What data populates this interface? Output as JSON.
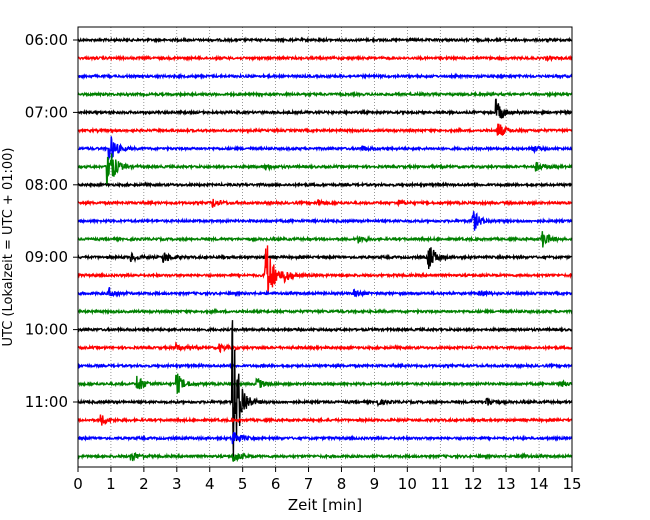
{
  "chart_data": {
    "type": "line",
    "title": "",
    "xlabel": "Zeit  [min]",
    "ylabel": "UTC (Lokalzeit = UTC + 01:00)",
    "xlim": [
      0,
      15
    ],
    "x_ticks": [
      "0",
      "1",
      "2",
      "3",
      "4",
      "5",
      "6",
      "7",
      "8",
      "9",
      "10",
      "11",
      "12",
      "13",
      "14",
      "15"
    ],
    "y_tick_labels": [
      "06:00",
      "07:00",
      "08:00",
      "09:00",
      "10:00",
      "11:00"
    ],
    "grid": "vertical dotted lines at each minute",
    "row_interval_minutes": 15,
    "trace_colors": [
      "#000000",
      "#ff0000",
      "#0000ff",
      "#008000"
    ],
    "traces": [
      {
        "start": "06:00",
        "events": []
      },
      {
        "start": "06:15",
        "events": [
          {
            "t": 14.2,
            "amp": 0.1
          }
        ]
      },
      {
        "start": "06:30",
        "events": []
      },
      {
        "start": "06:45",
        "events": []
      },
      {
        "start": "07:00",
        "events": [
          {
            "t": 12.7,
            "amp": 0.7
          }
        ]
      },
      {
        "start": "07:15",
        "events": [
          {
            "t": 12.75,
            "amp": 0.5
          }
        ]
      },
      {
        "start": "07:30",
        "events": [
          {
            "t": 0.95,
            "amp": 0.9
          },
          {
            "t": 8.6,
            "amp": 0.15
          },
          {
            "t": 13.8,
            "amp": 0.15
          }
        ]
      },
      {
        "start": "07:45",
        "events": [
          {
            "t": 0.9,
            "amp": 1.5
          },
          {
            "t": 5.7,
            "amp": 0.15
          },
          {
            "t": 13.9,
            "amp": 0.25
          }
        ]
      },
      {
        "start": "08:00",
        "events": []
      },
      {
        "start": "08:15",
        "events": [
          {
            "t": 4.1,
            "amp": 0.25
          },
          {
            "t": 7.3,
            "amp": 0.15
          },
          {
            "t": 9.7,
            "amp": 0.15
          }
        ]
      },
      {
        "start": "08:30",
        "events": [
          {
            "t": 12.0,
            "amp": 0.6
          }
        ]
      },
      {
        "start": "08:45",
        "events": [
          {
            "t": 8.5,
            "amp": 0.2
          },
          {
            "t": 14.1,
            "amp": 0.5
          }
        ]
      },
      {
        "start": "09:00",
        "events": [
          {
            "t": 1.6,
            "amp": 0.25
          },
          {
            "t": 2.6,
            "amp": 0.3
          },
          {
            "t": 10.65,
            "amp": 0.8
          }
        ]
      },
      {
        "start": "09:15",
        "events": [
          {
            "t": 5.7,
            "amp": 2.3
          },
          {
            "t": 6.3,
            "amp": 0.3
          }
        ]
      },
      {
        "start": "09:30",
        "events": [
          {
            "t": 0.95,
            "amp": 0.3
          },
          {
            "t": 8.4,
            "amp": 0.2
          },
          {
            "t": 12.2,
            "amp": 0.2
          }
        ]
      },
      {
        "start": "09:45",
        "events": []
      },
      {
        "start": "10:00",
        "events": []
      },
      {
        "start": "10:15",
        "events": [
          {
            "t": 3.0,
            "amp": 0.2
          },
          {
            "t": 4.3,
            "amp": 0.2
          }
        ]
      },
      {
        "start": "10:30",
        "events": []
      },
      {
        "start": "10:45",
        "events": [
          {
            "t": 1.8,
            "amp": 0.5
          },
          {
            "t": 3.0,
            "amp": 0.6
          },
          {
            "t": 5.4,
            "amp": 0.4
          },
          {
            "t": 14.6,
            "amp": 0.2
          }
        ]
      },
      {
        "start": "11:00",
        "events": [
          {
            "t": 4.7,
            "amp": 4.5
          },
          {
            "t": 9.1,
            "amp": 0.15
          },
          {
            "t": 12.4,
            "amp": 0.25
          }
        ]
      },
      {
        "start": "11:15",
        "events": [
          {
            "t": 0.7,
            "amp": 0.3
          }
        ]
      },
      {
        "start": "11:30",
        "events": [
          {
            "t": 4.7,
            "amp": 0.5
          }
        ]
      },
      {
        "start": "11:45",
        "events": [
          {
            "t": 1.6,
            "amp": 0.3
          },
          {
            "t": 4.7,
            "amp": 0.4
          },
          {
            "t": 13.4,
            "amp": 0.1
          }
        ]
      }
    ]
  }
}
